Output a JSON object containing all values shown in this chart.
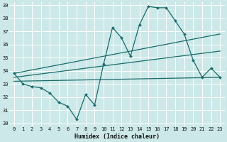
{
  "xlabel": "Humidex (Indice chaleur)",
  "xlim": [
    -0.5,
    23.5
  ],
  "ylim": [
    29.8,
    39.2
  ],
  "yticks": [
    30,
    31,
    32,
    33,
    34,
    35,
    36,
    37,
    38,
    39
  ],
  "xticks": [
    0,
    1,
    2,
    3,
    4,
    5,
    6,
    7,
    8,
    9,
    10,
    11,
    12,
    13,
    14,
    15,
    16,
    17,
    18,
    19,
    20,
    21,
    22,
    23
  ],
  "bg_color": "#cce8e8",
  "grid_color": "#b0d4d4",
  "line_color": "#1a6b6b",
  "series": {
    "zigzag": {
      "x": [
        0,
        1,
        2,
        3,
        4,
        5,
        6,
        7,
        8,
        9,
        10,
        11,
        12,
        13,
        14,
        15,
        16,
        17,
        18,
        19,
        20,
        21,
        22,
        23
      ],
      "y": [
        33.8,
        33.0,
        32.8,
        32.7,
        32.3,
        31.6,
        31.3,
        30.3,
        32.2,
        31.4,
        34.5,
        37.3,
        36.5,
        35.1,
        37.5,
        38.9,
        38.8,
        38.8,
        37.8,
        36.8,
        34.8,
        33.5,
        34.2,
        33.5
      ]
    },
    "trend_upper": {
      "x": [
        0,
        23
      ],
      "y": [
        33.8,
        36.8
      ]
    },
    "trend_mid": {
      "x": [
        0,
        23
      ],
      "y": [
        33.5,
        35.5
      ]
    },
    "flat": {
      "x": [
        0,
        23
      ],
      "y": [
        33.2,
        33.5
      ]
    }
  }
}
